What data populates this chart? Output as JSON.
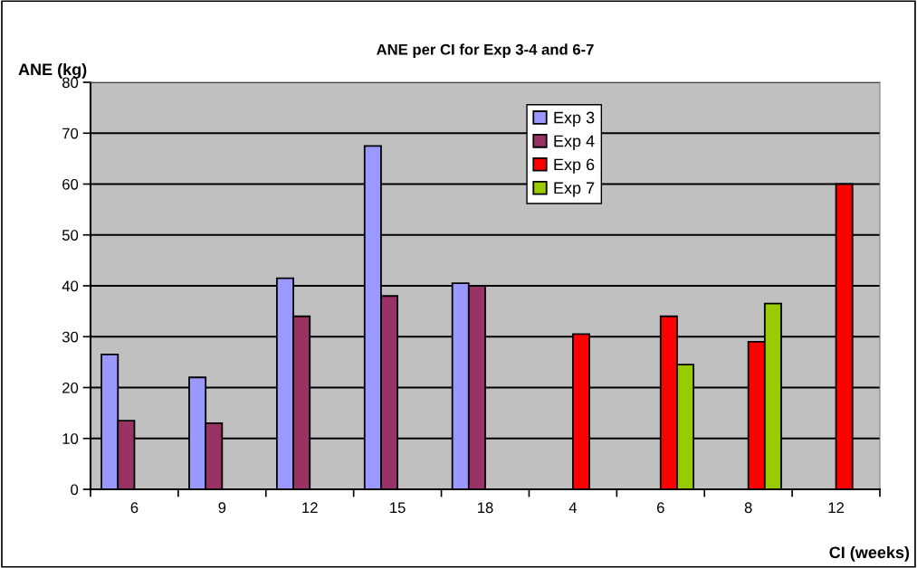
{
  "chart_data": {
    "type": "bar",
    "title": "ANE per CI for Exp 3-4 and 6-7",
    "xlabel": "CI (weeks)",
    "ylabel": "ANE (kg)",
    "categories": [
      "6",
      "9",
      "12",
      "15",
      "18",
      "4",
      "6",
      "8",
      "12"
    ],
    "series": [
      {
        "name": "Exp 3",
        "color": "#9999ff",
        "values": [
          26.5,
          22,
          41.5,
          67.5,
          40.5,
          null,
          null,
          null,
          null
        ]
      },
      {
        "name": "Exp 4",
        "color": "#993366",
        "values": [
          13.5,
          13,
          34,
          38,
          40,
          null,
          null,
          null,
          null
        ]
      },
      {
        "name": "Exp 6",
        "color": "#ff0000",
        "values": [
          null,
          null,
          null,
          null,
          null,
          30.5,
          34,
          29,
          60
        ]
      },
      {
        "name": "Exp 7",
        "color": "#99cc00",
        "values": [
          null,
          null,
          null,
          null,
          null,
          null,
          24.5,
          36.5,
          null
        ]
      }
    ],
    "ylim": [
      0,
      80
    ],
    "yticks": [
      0,
      10,
      20,
      30,
      40,
      50,
      60,
      70,
      80
    ],
    "grid": "y",
    "legend": "top"
  }
}
